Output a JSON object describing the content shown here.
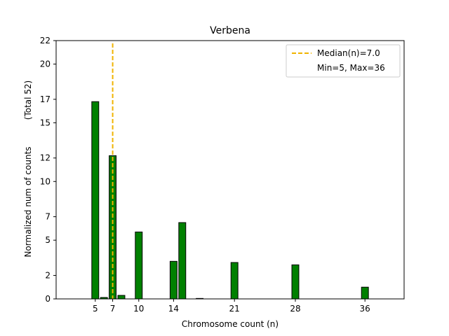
{
  "chart_data": {
    "type": "bar",
    "title": "Verbena",
    "xlabel": "Chromosome count (n)",
    "ylabel": "Normalized num of counts",
    "ylabel_note": "(Total 52)",
    "xlim": [
      0.5,
      40.5
    ],
    "ylim": [
      0,
      22
    ],
    "xticks": [
      5,
      7,
      10,
      14,
      21,
      28,
      36
    ],
    "yticks": [
      0,
      2,
      5,
      7,
      10,
      12,
      15,
      17,
      20,
      22
    ],
    "bar_color": "#008000",
    "bar_edge_color": "#000000",
    "bars": [
      {
        "x": 5,
        "value": 16.8
      },
      {
        "x": 6,
        "value": 0.12
      },
      {
        "x": 7,
        "value": 12.2
      },
      {
        "x": 8,
        "value": 0.3
      },
      {
        "x": 10,
        "value": 5.7
      },
      {
        "x": 14,
        "value": 3.2
      },
      {
        "x": 15,
        "value": 6.5
      },
      {
        "x": 17,
        "value": 0.04
      },
      {
        "x": 21,
        "value": 3.1
      },
      {
        "x": 28,
        "value": 2.9
      },
      {
        "x": 36,
        "value": 1.0
      }
    ],
    "median": {
      "value": 7.0,
      "label": "Median(n)=7.0",
      "color": "#f0b400"
    },
    "legend": {
      "placement": "top-right",
      "entries": [
        "Median(n)=7.0",
        "Min=5, Max=36"
      ]
    }
  }
}
